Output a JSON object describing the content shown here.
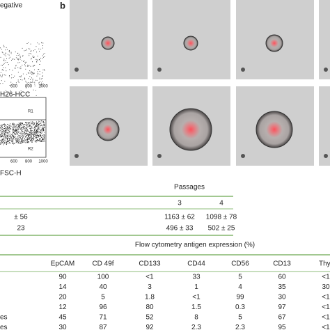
{
  "panel_a": {
    "top_plot_label": "egative",
    "top_ticks": [
      600,
      800,
      1000
    ],
    "bottom_plot_label": "H26-HCC",
    "gates": [
      "R1",
      "R2"
    ],
    "bottom_ticks": [
      600,
      800,
      1000
    ],
    "x_axis_label": "FSC-H"
  },
  "panel_b": {
    "label": "b"
  },
  "passages_table": {
    "title": "Passages",
    "header": [
      3,
      4
    ],
    "rows": [
      [
        "± 56",
        "1163 ± 62",
        "1098 ± 78"
      ],
      [
        23,
        "496 ± 33",
        "502 ± 25"
      ]
    ]
  },
  "antigen_table": {
    "title": "Flow cytometry antigen expression (%)",
    "header": [
      "EpCAM",
      "CD 49f",
      "CD133",
      "CD44",
      "CD56",
      "CD13",
      "Thy-"
    ],
    "rows": [
      {
        "values": [
          90,
          100,
          "<1",
          33,
          5,
          60,
          "<1"
        ]
      },
      {
        "values": [
          14,
          40,
          3,
          1,
          4,
          35,
          30
        ]
      },
      {
        "values": [
          20,
          5,
          1.8,
          "<1",
          99,
          30,
          "<1"
        ]
      },
      {
        "values": [
          12,
          96,
          80,
          1.5,
          0.3,
          97,
          "<1"
        ]
      },
      {
        "label": "es",
        "values": [
          45,
          71,
          52,
          8,
          5,
          67,
          "<1"
        ]
      },
      {
        "label": "es",
        "values": [
          30,
          87,
          92,
          2.3,
          2.3,
          95,
          "<1"
        ]
      }
    ]
  }
}
